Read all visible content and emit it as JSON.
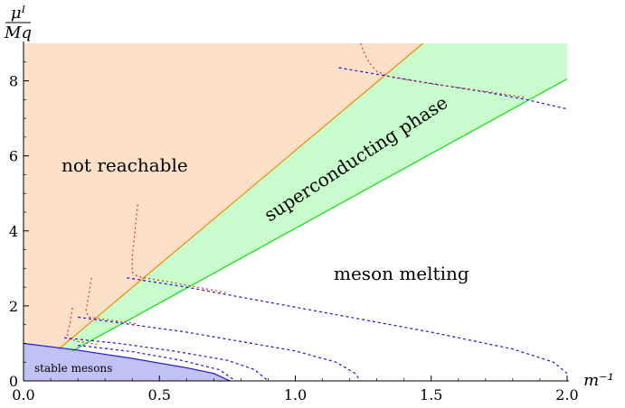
{
  "chart_data": {
    "type": "area",
    "title": "",
    "xlabel": "m⁻¹",
    "ylabel_num": "μᴵ",
    "ylabel_den": "Mq",
    "xlim": [
      0,
      2
    ],
    "ylim": [
      0,
      9
    ],
    "x_ticks": [
      "0.0",
      "0.5",
      "1.0",
      "1.5",
      "2.0"
    ],
    "y_ticks": [
      "0",
      "2",
      "4",
      "6",
      "8"
    ],
    "colors": {
      "not_reachable_fill": "#fde0c8",
      "superconducting_fill": "#c8fccc",
      "stable_fill": "#c0c2f4",
      "orange_line": "#f08c00",
      "green_line": "#10dd10",
      "blue_line": "#1a14c8",
      "blue_dashed": "#1a14d8",
      "red_dotted": "#ee2a2a"
    },
    "regions": [
      {
        "id": "not-reachable",
        "label": "not reachable"
      },
      {
        "id": "superconducting",
        "label": "superconducting phase"
      },
      {
        "id": "meson-melting",
        "label": "meson melting"
      },
      {
        "id": "stable-mesons",
        "label": "stable mesons"
      }
    ],
    "series": [
      {
        "id": "upper-boundary",
        "style": "solid",
        "color": "#f08c00",
        "points": [
          [
            0.13,
            0.85
          ],
          [
            1.47,
            9.0
          ]
        ]
      },
      {
        "id": "lower-boundary",
        "style": "solid",
        "color": "#10dd10",
        "points": [
          [
            0.18,
            0.8
          ],
          [
            2.0,
            8.05
          ]
        ]
      },
      {
        "id": "stable-boundary",
        "style": "solid",
        "color": "#1a14c8",
        "points": [
          [
            0.0,
            1.0
          ],
          [
            0.2,
            0.82
          ],
          [
            0.4,
            0.6
          ],
          [
            0.6,
            0.35
          ],
          [
            0.7,
            0.2
          ],
          [
            0.76,
            0.0
          ]
        ]
      },
      {
        "id": "meson-curve-1",
        "style": "dashed",
        "color": "#1a14d8",
        "points": [
          [
            1.16,
            8.35
          ],
          [
            1.32,
            8.15
          ],
          [
            1.5,
            7.93
          ],
          [
            1.7,
            7.7
          ],
          [
            1.85,
            7.5
          ],
          [
            2.0,
            7.25
          ]
        ]
      },
      {
        "id": "meson-curve-2",
        "style": "dashed",
        "color": "#1a14d8",
        "points": [
          [
            0.38,
            2.75
          ],
          [
            0.6,
            2.5
          ],
          [
            0.9,
            2.1
          ],
          [
            1.2,
            1.7
          ],
          [
            1.5,
            1.3
          ],
          [
            1.8,
            0.85
          ],
          [
            1.95,
            0.5
          ],
          [
            2.0,
            0.2
          ]
        ]
      },
      {
        "id": "meson-curve-3",
        "style": "dashed",
        "color": "#1a14d8",
        "points": [
          [
            0.2,
            1.7
          ],
          [
            0.4,
            1.5
          ],
          [
            0.6,
            1.3
          ],
          [
            0.8,
            1.05
          ],
          [
            1.0,
            0.8
          ],
          [
            1.15,
            0.5
          ],
          [
            1.22,
            0.2
          ],
          [
            1.24,
            0.0
          ]
        ]
      },
      {
        "id": "meson-curve-4",
        "style": "dashed",
        "color": "#1a14d8",
        "points": [
          [
            0.15,
            1.15
          ],
          [
            0.35,
            1.0
          ],
          [
            0.55,
            0.8
          ],
          [
            0.75,
            0.55
          ],
          [
            0.85,
            0.3
          ],
          [
            0.9,
            0.0
          ]
        ]
      },
      {
        "id": "meson-curve-5",
        "style": "dashed",
        "color": "#1a14d8",
        "points": [
          [
            0.2,
            0.95
          ],
          [
            0.4,
            0.78
          ],
          [
            0.58,
            0.55
          ],
          [
            0.72,
            0.3
          ],
          [
            0.78,
            0.0
          ]
        ]
      },
      {
        "id": "red-1",
        "style": "dotted",
        "color": "#ee2a2a",
        "points": [
          [
            1.24,
            9.0
          ],
          [
            1.25,
            8.8
          ],
          [
            1.27,
            8.5
          ],
          [
            1.3,
            8.25
          ],
          [
            1.35,
            8.1
          ],
          [
            1.5,
            7.92
          ],
          [
            1.7,
            7.72
          ],
          [
            1.85,
            7.55
          ]
        ]
      },
      {
        "id": "red-2",
        "style": "dotted",
        "color": "#ee2a2a",
        "points": [
          [
            0.42,
            4.7
          ],
          [
            0.41,
            4.0
          ],
          [
            0.4,
            3.3
          ],
          [
            0.4,
            2.9
          ],
          [
            0.42,
            2.78
          ],
          [
            0.55,
            2.62
          ],
          [
            0.75,
            2.35
          ]
        ]
      },
      {
        "id": "red-3",
        "style": "dotted",
        "color": "#ee2a2a",
        "points": [
          [
            0.25,
            2.75
          ],
          [
            0.24,
            2.3
          ],
          [
            0.23,
            1.85
          ],
          [
            0.24,
            1.7
          ],
          [
            0.3,
            1.64
          ],
          [
            0.42,
            1.52
          ]
        ]
      },
      {
        "id": "red-4",
        "style": "dotted",
        "color": "#ee2a2a",
        "points": [
          [
            0.18,
            1.95
          ],
          [
            0.17,
            1.5
          ],
          [
            0.16,
            1.25
          ],
          [
            0.17,
            1.12
          ],
          [
            0.2,
            1.05
          ],
          [
            0.28,
            0.97
          ]
        ]
      }
    ]
  }
}
